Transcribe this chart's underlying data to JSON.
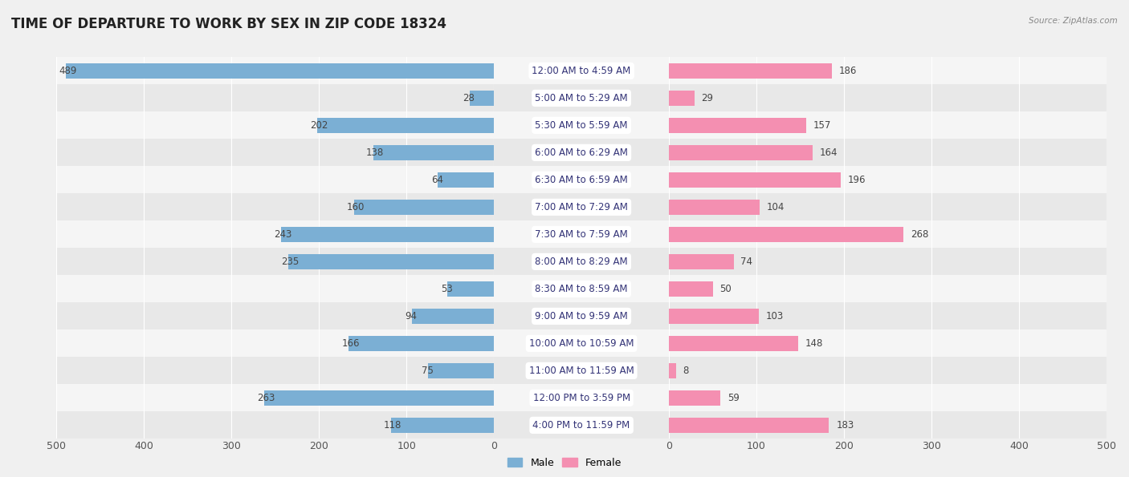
{
  "title": "TIME OF DEPARTURE TO WORK BY SEX IN ZIP CODE 18324",
  "source": "Source: ZipAtlas.com",
  "categories": [
    "12:00 AM to 4:59 AM",
    "5:00 AM to 5:29 AM",
    "5:30 AM to 5:59 AM",
    "6:00 AM to 6:29 AM",
    "6:30 AM to 6:59 AM",
    "7:00 AM to 7:29 AM",
    "7:30 AM to 7:59 AM",
    "8:00 AM to 8:29 AM",
    "8:30 AM to 8:59 AM",
    "9:00 AM to 9:59 AM",
    "10:00 AM to 10:59 AM",
    "11:00 AM to 11:59 AM",
    "12:00 PM to 3:59 PM",
    "4:00 PM to 11:59 PM"
  ],
  "male_values": [
    489,
    28,
    202,
    138,
    64,
    160,
    243,
    235,
    53,
    94,
    166,
    75,
    263,
    118
  ],
  "female_values": [
    186,
    29,
    157,
    164,
    196,
    104,
    268,
    74,
    50,
    103,
    148,
    8,
    59,
    183
  ],
  "male_color": "#7bafd4",
  "female_color": "#f48fb1",
  "axis_max": 500,
  "bg_color": "#f0f0f0",
  "row_colors": [
    "#f5f5f5",
    "#e8e8e8"
  ],
  "title_fontsize": 12,
  "tick_fontsize": 9,
  "label_fontsize": 8.5,
  "category_fontsize": 8.5,
  "legend_fontsize": 9,
  "bar_height": 0.55
}
